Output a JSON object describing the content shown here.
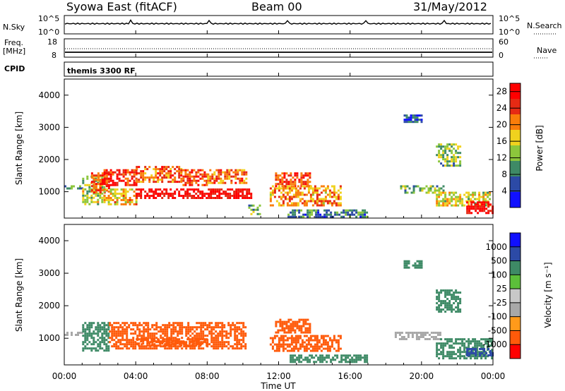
{
  "header": {
    "title": "Syowa East (fitACF)",
    "beam": "Beam 00",
    "date": "31/May/2012"
  },
  "nsky_panel": {
    "left_label": "N.Sky",
    "left_ticks": [
      "10^5",
      "10^0"
    ],
    "right_ticks": [
      "10^5",
      "10^0"
    ],
    "right_label": "N.Search"
  },
  "freq_panel": {
    "left_label_line1": "Freq.",
    "left_label_line2": "[MHz]",
    "left_ticks": [
      "18",
      "8"
    ],
    "right_ticks": [
      "60",
      "0"
    ],
    "right_label": "Nave"
  },
  "cpid_panel": {
    "label": "CPID",
    "text": "themis 3300 RF"
  },
  "x_axis": {
    "label": "Time UT",
    "ticks": [
      "00:00",
      "04:00",
      "08:00",
      "12:00",
      "16:00",
      "20:00",
      "00:00"
    ]
  },
  "colors": {
    "power": [
      "#1010ff",
      "#2c4aa6",
      "#3e8a66",
      "#8cc63c",
      "#f0d21e",
      "#fa7d0a",
      "#e62a14",
      "#ff0000"
    ],
    "velocity": [
      "#ff0000",
      "#ff5a0a",
      "#ff9a1a",
      "#a8a8a8",
      "#c8c8c8",
      "#5cbf3a",
      "#3e8a66",
      "#2c4aa6",
      "#1010ff"
    ]
  },
  "chart_data": [
    {
      "type": "heatmap",
      "quantity": "Power",
      "ylabel": "Slant Range [km]",
      "yticks": [
        "1000",
        "2000",
        "3000",
        "4000"
      ],
      "ylim": [
        180,
        4500
      ],
      "xlim_hours": [
        0,
        24
      ],
      "colorbar": {
        "label": "Power [dB]",
        "ticks": [
          "4",
          "8",
          "12",
          "16",
          "20",
          "24",
          "28"
        ],
        "range": [
          0,
          30
        ]
      },
      "regions": [
        {
          "t": [
            0.0,
            1.0
          ],
          "r": [
            1100,
            1200
          ],
          "value": 10
        },
        {
          "t": [
            1.0,
            2.2
          ],
          "r": [
            600,
            1500
          ],
          "value": 14
        },
        {
          "t": [
            1.5,
            2.5
          ],
          "r": [
            1000,
            1600
          ],
          "value": 24
        },
        {
          "t": [
            2.2,
            4.0
          ],
          "r": [
            1200,
            1700
          ],
          "value": 26
        },
        {
          "t": [
            2.2,
            4.0
          ],
          "r": [
            600,
            1100
          ],
          "value": 18
        },
        {
          "t": [
            4.0,
            6.5
          ],
          "r": [
            1300,
            1800
          ],
          "value": 22
        },
        {
          "t": [
            4.0,
            10.5
          ],
          "r": [
            800,
            1100
          ],
          "value": 28
        },
        {
          "t": [
            6.5,
            8.0
          ],
          "r": [
            1200,
            1700
          ],
          "value": 24
        },
        {
          "t": [
            8.0,
            10.2
          ],
          "r": [
            1300,
            1700
          ],
          "value": 22
        },
        {
          "t": [
            10.3,
            11.0
          ],
          "r": [
            300,
            600
          ],
          "value": 10
        },
        {
          "t": [
            11.8,
            13.8
          ],
          "r": [
            1200,
            1600
          ],
          "value": 24
        },
        {
          "t": [
            11.5,
            15.5
          ],
          "r": [
            600,
            1200
          ],
          "value": 20
        },
        {
          "t": [
            12.5,
            17.0
          ],
          "r": [
            250,
            450
          ],
          "value": 8
        },
        {
          "t": [
            18.8,
            21.2
          ],
          "r": [
            1000,
            1200
          ],
          "value": 12
        },
        {
          "t": [
            20.8,
            23.8
          ],
          "r": [
            600,
            1000
          ],
          "value": 16
        },
        {
          "t": [
            20.8,
            22.2
          ],
          "r": [
            1800,
            2500
          ],
          "value": 12
        },
        {
          "t": [
            22.5,
            24.0
          ],
          "r": [
            350,
            700
          ],
          "value": 28
        },
        {
          "t": [
            19.0,
            20.0
          ],
          "r": [
            3200,
            3400
          ],
          "value": 6
        }
      ]
    },
    {
      "type": "heatmap",
      "quantity": "Velocity",
      "ylabel": "Slant Range [km]",
      "yticks": [
        "1000",
        "2000",
        "3000",
        "4000"
      ],
      "ylim": [
        180,
        4500
      ],
      "xlim_hours": [
        0,
        24
      ],
      "colorbar": {
        "label": "Velocity [m s⁻¹]",
        "ticks": [
          "1000",
          "500",
          "100",
          "25",
          "-25",
          "-100",
          "-500",
          "-1000"
        ]
      },
      "regions": [
        {
          "t": [
            0.0,
            1.0
          ],
          "r": [
            1100,
            1200
          ],
          "value": 0
        },
        {
          "t": [
            1.0,
            2.5
          ],
          "r": [
            600,
            1500
          ],
          "value": 150
        },
        {
          "t": [
            2.5,
            10.2
          ],
          "r": [
            700,
            1500
          ],
          "value": -300
        },
        {
          "t": [
            4.0,
            8.0
          ],
          "r": [
            800,
            1000
          ],
          "value": -150
        },
        {
          "t": [
            11.8,
            13.8
          ],
          "r": [
            1200,
            1600
          ],
          "value": -300
        },
        {
          "t": [
            11.5,
            15.5
          ],
          "r": [
            600,
            1100
          ],
          "value": -120
        },
        {
          "t": [
            12.5,
            17.0
          ],
          "r": [
            250,
            500
          ],
          "value": 200
        },
        {
          "t": [
            18.5,
            21.0
          ],
          "r": [
            1000,
            1200
          ],
          "value": 0
        },
        {
          "t": [
            20.8,
            24.0
          ],
          "r": [
            400,
            1000
          ],
          "value": 500
        },
        {
          "t": [
            22.5,
            24.0
          ],
          "r": [
            500,
            700
          ],
          "value": 800
        },
        {
          "t": [
            20.8,
            22.2
          ],
          "r": [
            1800,
            2500
          ],
          "value": 300
        },
        {
          "t": [
            19.0,
            20.0
          ],
          "r": [
            3200,
            3400
          ],
          "value": 200
        }
      ]
    }
  ]
}
